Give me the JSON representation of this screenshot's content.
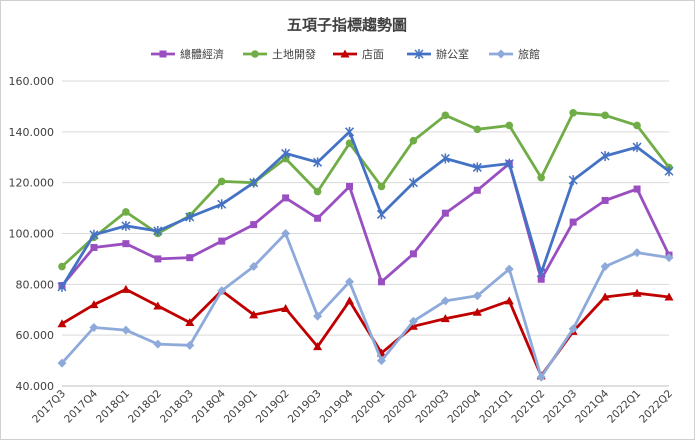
{
  "chart_data": {
    "type": "line",
    "title": "五項子指標趨勢圖",
    "xlabel": "",
    "ylabel": "",
    "ylim": [
      40,
      160
    ],
    "yticks": [
      "40.000",
      "60.000",
      "80.000",
      "100.000",
      "120.000",
      "140.000",
      "160.000"
    ],
    "grid": "horizontal",
    "legend": "top",
    "categories": [
      "2017Q3",
      "2017Q4",
      "2018Q1",
      "2018Q2",
      "2018Q3",
      "2018Q4",
      "2019Q1",
      "2019Q2",
      "2019Q3",
      "2019Q4",
      "2020Q1",
      "2020Q2",
      "2020Q3",
      "2020Q4",
      "2021Q1",
      "2021Q2",
      "2021Q3",
      "2021Q4",
      "2022Q1",
      "2022Q2"
    ],
    "series": [
      {
        "name": "總體經濟",
        "color": "#9a4fc0",
        "marker": "square",
        "values": [
          79.5,
          94.5,
          96,
          90,
          90.5,
          97,
          103.5,
          114,
          106,
          118.5,
          81,
          92,
          108,
          117,
          127.5,
          82,
          104.5,
          113,
          117.5,
          91.5
        ]
      },
      {
        "name": "土地開發",
        "color": "#70ad47",
        "marker": "circle",
        "values": [
          87,
          98.5,
          108.5,
          100,
          107,
          120.5,
          120,
          129.5,
          116.5,
          135.5,
          118.5,
          136.5,
          146.5,
          141,
          142.5,
          122,
          147.5,
          146.5,
          142.5,
          126
        ]
      },
      {
        "name": "店面",
        "color": "#c00000",
        "marker": "triangle",
        "values": [
          64.5,
          72,
          78,
          71.5,
          65,
          77.5,
          68,
          70.5,
          55.5,
          73.5,
          53,
          63.5,
          66.5,
          69,
          73.5,
          44,
          61.5,
          75,
          76.5,
          75
        ]
      },
      {
        "name": "辦公室",
        "color": "#4472c4",
        "marker": "star",
        "values": [
          79,
          99.5,
          103,
          101,
          106.5,
          111.5,
          120,
          131.5,
          128,
          140,
          107.5,
          120,
          129.5,
          126,
          127.5,
          84.5,
          121,
          130.5,
          134,
          124.5
        ]
      },
      {
        "name": "旅館",
        "color": "#8eaadb",
        "marker": "diamond",
        "values": [
          49,
          63,
          62,
          56.5,
          56,
          77.5,
          87,
          100,
          67.5,
          81,
          50,
          65.5,
          73.5,
          75.5,
          86,
          43.5,
          62.5,
          87,
          92.5,
          90.5
        ]
      }
    ]
  }
}
